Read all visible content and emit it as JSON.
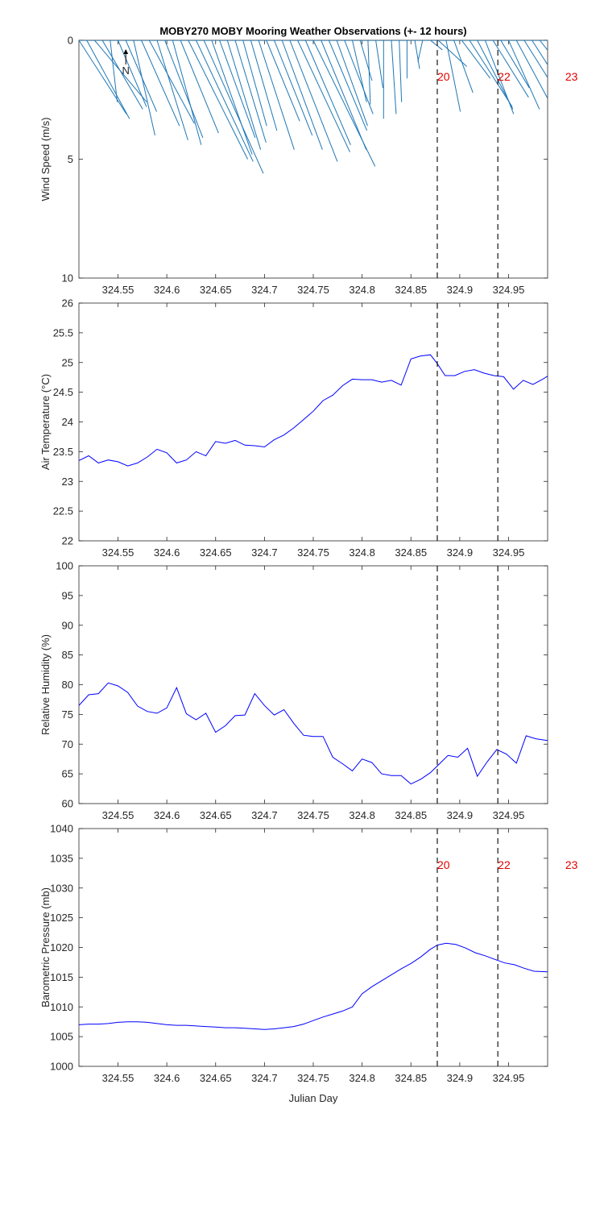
{
  "title": "MOBY270 MOBY Mooring Weather Observations (+- 12 hours)",
  "xlabel": "Julian Day",
  "x_ticks": [
    324.55,
    324.6,
    324.65,
    324.7,
    324.75,
    324.8,
    324.85,
    324.9,
    324.95
  ],
  "x_tick_labels": [
    "324.55",
    "324.6",
    "324.65",
    "324.7",
    "324.75",
    "324.8",
    "324.85",
    "324.9",
    "324.95"
  ],
  "xlim": [
    324.51,
    324.99
  ],
  "colors": {
    "line": "#0000ff",
    "wind": "#1f77b4",
    "event": "#e00000",
    "axis": "#262626"
  },
  "events": {
    "x": [
      324.877,
      324.939,
      325.008
    ],
    "labels": [
      "20",
      "22",
      "23"
    ]
  },
  "north_label": "N",
  "chart_data": [
    {
      "type": "wind-sticks",
      "ylabel": "Wind Speed (m/s)",
      "ylim": [
        0,
        10
      ],
      "y_ticks": [
        0,
        5,
        10
      ],
      "y_tick_labels": [
        "0",
        "5",
        "10"
      ],
      "y_reversed": true,
      "show_event_labels": true,
      "sticks": [
        {
          "x": 324.51,
          "u": 2.0,
          "v": -3.1
        },
        {
          "x": 324.518,
          "u": 1.8,
          "v": -3.3
        },
        {
          "x": 324.526,
          "u": 2.2,
          "v": -2.6
        },
        {
          "x": 324.534,
          "u": 1.7,
          "v": -2.9
        },
        {
          "x": 324.542,
          "u": 0.3,
          "v": -2.6
        },
        {
          "x": 324.55,
          "u": 1.2,
          "v": -2.8
        },
        {
          "x": 324.558,
          "u": 1.3,
          "v": -3.0
        },
        {
          "x": 324.566,
          "u": 0.9,
          "v": -4.0
        },
        {
          "x": 324.574,
          "u": 1.6,
          "v": -3.6
        },
        {
          "x": 324.582,
          "u": 1.9,
          "v": -3.5
        },
        {
          "x": 324.59,
          "u": 1.3,
          "v": -4.2
        },
        {
          "x": 324.598,
          "u": 1.6,
          "v": -4.1
        },
        {
          "x": 324.606,
          "u": 1.2,
          "v": -4.4
        },
        {
          "x": 324.614,
          "u": 1.6,
          "v": -3.9
        },
        {
          "x": 324.622,
          "u": 2.5,
          "v": -5.0
        },
        {
          "x": 324.63,
          "u": 2.4,
          "v": -5.1
        },
        {
          "x": 324.638,
          "u": 2.5,
          "v": -5.6
        },
        {
          "x": 324.646,
          "u": 1.7,
          "v": -4.8
        },
        {
          "x": 324.654,
          "u": 1.5,
          "v": -4.1
        },
        {
          "x": 324.662,
          "u": 1.4,
          "v": -4.6
        },
        {
          "x": 324.67,
          "u": 1.3,
          "v": -4.3
        },
        {
          "x": 324.678,
          "u": 1.0,
          "v": -3.6
        },
        {
          "x": 324.686,
          "u": 1.1,
          "v": -3.8
        },
        {
          "x": 324.694,
          "u": 1.5,
          "v": -4.6
        },
        {
          "x": 324.702,
          "u": 1.4,
          "v": -3.4
        },
        {
          "x": 324.71,
          "u": 1.6,
          "v": -4.0
        },
        {
          "x": 324.718,
          "u": 1.7,
          "v": -4.6
        },
        {
          "x": 324.726,
          "u": 2.0,
          "v": -5.1
        },
        {
          "x": 324.734,
          "u": 2.2,
          "v": -4.7
        },
        {
          "x": 324.742,
          "u": 1.9,
          "v": -4.4
        },
        {
          "x": 324.75,
          "u": 2.6,
          "v": -5.3
        },
        {
          "x": 324.758,
          "u": 1.9,
          "v": -4.6
        },
        {
          "x": 324.766,
          "u": 1.6,
          "v": -3.8
        },
        {
          "x": 324.774,
          "u": 1.3,
          "v": -3.6
        },
        {
          "x": 324.782,
          "u": 1.2,
          "v": -3.1
        },
        {
          "x": 324.79,
          "u": 0.6,
          "v": -2.6
        },
        {
          "x": 324.798,
          "u": 0.5,
          "v": -1.7
        },
        {
          "x": 324.806,
          "u": 0.1,
          "v": -2.7
        },
        {
          "x": 324.814,
          "u": 0.3,
          "v": -2.0
        },
        {
          "x": 324.822,
          "u": 0.0,
          "v": -3.3
        },
        {
          "x": 324.83,
          "u": 0.2,
          "v": -3.1
        },
        {
          "x": 324.838,
          "u": 0.1,
          "v": -2.6
        },
        {
          "x": 324.846,
          "u": 0.0,
          "v": -1.6
        },
        {
          "x": 324.854,
          "u": 0.2,
          "v": -1.2
        },
        {
          "x": 324.862,
          "u": -0.2,
          "v": -0.9
        },
        {
          "x": 324.87,
          "u": 0.5,
          "v": -0.4
        },
        {
          "x": 324.878,
          "u": 1.2,
          "v": -1.1
        },
        {
          "x": 324.886,
          "u": 0.6,
          "v": -3.0
        },
        {
          "x": 324.894,
          "u": 0.8,
          "v": -2.2
        },
        {
          "x": 324.902,
          "u": 1.2,
          "v": -1.6
        },
        {
          "x": 324.91,
          "u": 1.8,
          "v": -2.8
        },
        {
          "x": 324.918,
          "u": 1.5,
          "v": -2.9
        },
        {
          "x": 324.926,
          "u": 1.2,
          "v": -3.1
        },
        {
          "x": 324.934,
          "u": 1.5,
          "v": -2.4
        },
        {
          "x": 324.942,
          "u": 1.2,
          "v": -2.0
        },
        {
          "x": 324.95,
          "u": 1.3,
          "v": -2.9
        },
        {
          "x": 324.958,
          "u": 1.4,
          "v": -2.6
        },
        {
          "x": 324.966,
          "u": 1.7,
          "v": -2.7
        },
        {
          "x": 324.974,
          "u": 1.6,
          "v": -2.5
        },
        {
          "x": 324.982,
          "u": 1.5,
          "v": -1.9
        },
        {
          "x": 324.99,
          "u": 1.5,
          "v": -2.4
        }
      ]
    },
    {
      "type": "line",
      "ylabel": "Air Temperature (°C)",
      "ylim": [
        22,
        26
      ],
      "y_ticks": [
        22,
        22.5,
        23,
        23.5,
        24,
        24.5,
        25,
        25.5,
        26
      ],
      "y_tick_labels": [
        "22",
        "22.5",
        "23",
        "23.5",
        "24",
        "24.5",
        "25",
        "25.5",
        "26"
      ],
      "show_event_labels": false,
      "x": [
        324.51,
        324.52,
        324.53,
        324.54,
        324.55,
        324.56,
        324.57,
        324.58,
        324.59,
        324.6,
        324.61,
        324.62,
        324.63,
        324.64,
        324.65,
        324.66,
        324.67,
        324.68,
        324.69,
        324.7,
        324.71,
        324.72,
        324.73,
        324.74,
        324.75,
        324.76,
        324.77,
        324.78,
        324.79,
        324.8,
        324.81,
        324.82,
        324.83,
        324.84,
        324.85,
        324.86,
        324.87,
        324.877,
        324.885,
        324.895,
        324.905,
        324.915,
        324.925,
        324.935,
        324.945,
        324.955,
        324.965,
        324.975,
        324.985,
        324.99
      ],
      "values": [
        23.35,
        23.43,
        23.31,
        23.36,
        23.33,
        23.26,
        23.31,
        23.41,
        23.54,
        23.48,
        23.31,
        23.36,
        23.5,
        23.43,
        23.67,
        23.64,
        23.69,
        23.61,
        23.6,
        23.58,
        23.7,
        23.78,
        23.9,
        24.04,
        24.18,
        24.36,
        24.45,
        24.61,
        24.72,
        24.71,
        24.71,
        24.67,
        24.7,
        24.62,
        25.06,
        25.11,
        25.13,
        24.98,
        24.78,
        24.78,
        24.85,
        24.88,
        24.82,
        24.78,
        24.76,
        24.55,
        24.7,
        24.63,
        24.72,
        24.77
      ]
    },
    {
      "type": "line",
      "ylabel": "Relative Humidity (%)",
      "ylim": [
        60,
        100
      ],
      "y_ticks": [
        60,
        65,
        70,
        75,
        80,
        85,
        90,
        95,
        100
      ],
      "y_tick_labels": [
        "60",
        "65",
        "70",
        "75",
        "80",
        "85",
        "90",
        "95",
        "100"
      ],
      "show_event_labels": false,
      "x": [
        324.51,
        324.52,
        324.53,
        324.54,
        324.55,
        324.56,
        324.57,
        324.58,
        324.59,
        324.6,
        324.61,
        324.62,
        324.63,
        324.64,
        324.65,
        324.66,
        324.67,
        324.68,
        324.69,
        324.7,
        324.71,
        324.72,
        324.73,
        324.74,
        324.75,
        324.76,
        324.77,
        324.78,
        324.79,
        324.8,
        324.81,
        324.82,
        324.83,
        324.84,
        324.85,
        324.86,
        324.87,
        324.878,
        324.888,
        324.898,
        324.908,
        324.918,
        324.928,
        324.938,
        324.948,
        324.958,
        324.968,
        324.978,
        324.99
      ],
      "values": [
        76.5,
        78.3,
        78.5,
        80.3,
        79.8,
        78.7,
        76.4,
        75.5,
        75.2,
        76.1,
        79.5,
        75.1,
        74.1,
        75.2,
        72.0,
        73.1,
        74.8,
        74.9,
        78.5,
        76.5,
        74.9,
        75.8,
        73.5,
        71.5,
        71.3,
        71.3,
        67.8,
        66.7,
        65.5,
        67.5,
        66.9,
        65.0,
        64.7,
        64.7,
        63.3,
        64.1,
        65.2,
        66.5,
        68.1,
        67.8,
        69.3,
        64.6,
        67.0,
        69.1,
        68.3,
        66.8,
        71.4,
        70.9,
        70.6
      ]
    },
    {
      "type": "line",
      "ylabel": "Barometric Pressure (mb)",
      "ylim": [
        1000,
        1040
      ],
      "y_ticks": [
        1000,
        1005,
        1010,
        1015,
        1020,
        1025,
        1030,
        1035,
        1040
      ],
      "y_tick_labels": [
        "1000",
        "1005",
        "1010",
        "1015",
        "1020",
        "1025",
        "1030",
        "1035",
        "1040"
      ],
      "show_event_labels": true,
      "x": [
        324.51,
        324.52,
        324.53,
        324.54,
        324.55,
        324.56,
        324.57,
        324.58,
        324.59,
        324.6,
        324.61,
        324.62,
        324.63,
        324.64,
        324.65,
        324.66,
        324.67,
        324.68,
        324.69,
        324.7,
        324.71,
        324.72,
        324.73,
        324.74,
        324.75,
        324.76,
        324.77,
        324.78,
        324.79,
        324.8,
        324.81,
        324.82,
        324.83,
        324.84,
        324.85,
        324.86,
        324.87,
        324.877,
        324.886,
        324.896,
        324.906,
        324.916,
        324.926,
        324.936,
        324.946,
        324.956,
        324.966,
        324.976,
        324.99
      ],
      "values": [
        1007.0,
        1007.1,
        1007.1,
        1007.2,
        1007.4,
        1007.5,
        1007.5,
        1007.4,
        1007.2,
        1007.0,
        1006.9,
        1006.9,
        1006.8,
        1006.7,
        1006.6,
        1006.5,
        1006.5,
        1006.4,
        1006.3,
        1006.2,
        1006.3,
        1006.5,
        1006.7,
        1007.1,
        1007.7,
        1008.3,
        1008.8,
        1009.3,
        1010.0,
        1012.2,
        1013.4,
        1014.4,
        1015.4,
        1016.4,
        1017.3,
        1018.4,
        1019.7,
        1020.4,
        1020.7,
        1020.5,
        1019.9,
        1019.1,
        1018.6,
        1018.0,
        1017.4,
        1017.1,
        1016.5,
        1016.0,
        1015.9
      ]
    }
  ]
}
